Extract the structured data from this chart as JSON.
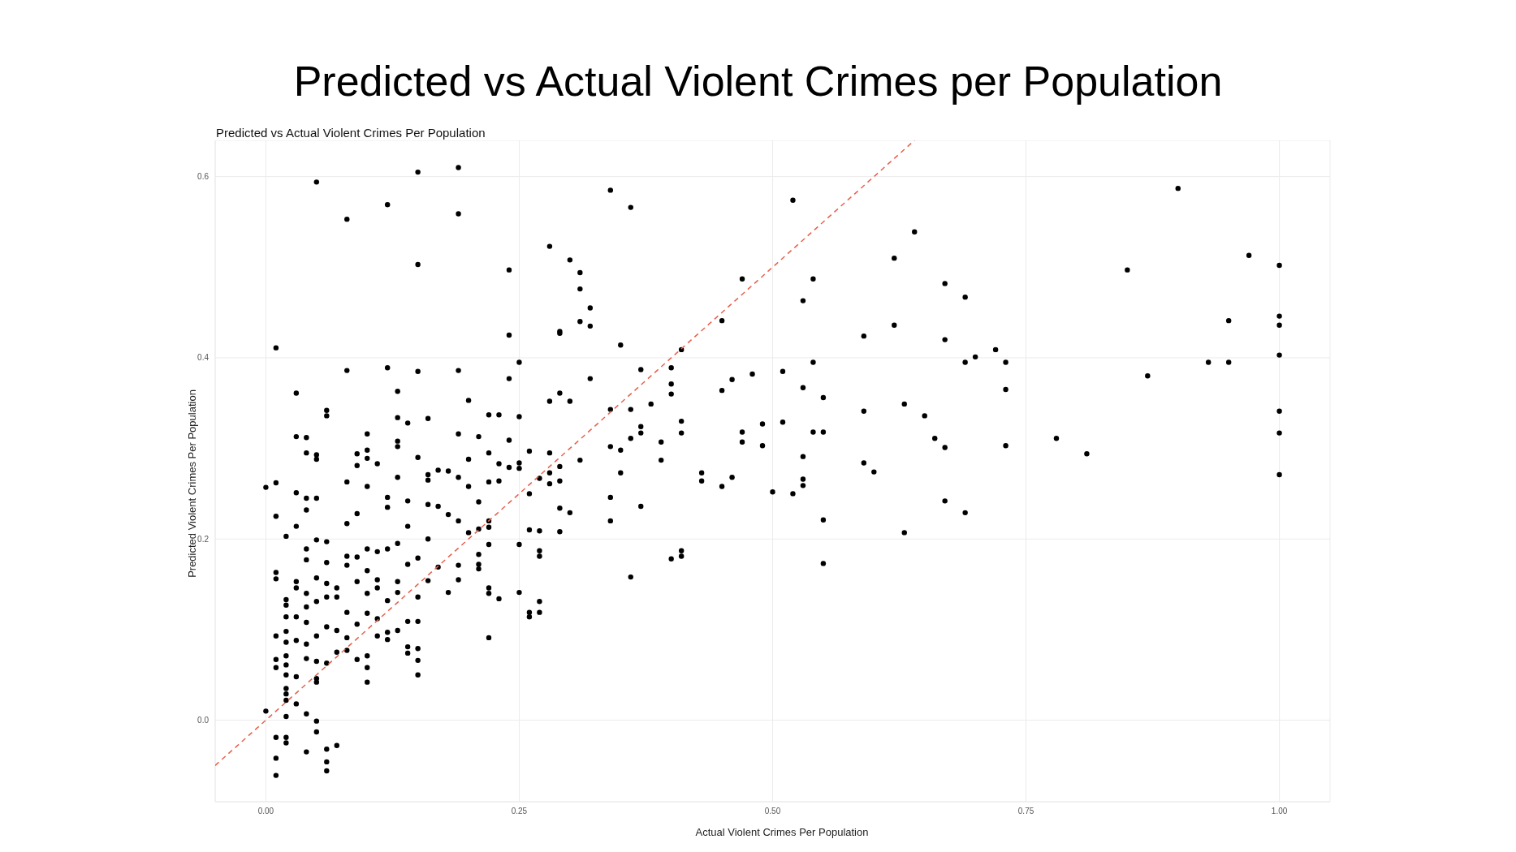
{
  "chart_data": {
    "type": "scatter",
    "title": "Predicted vs Actual Violent Crimes per Population",
    "subtitle": "Predicted vs Actual Violent Crimes Per Population",
    "xlabel": "Actual Violent Crimes Per Population",
    "ylabel": "Predicted Violent Crimes Per Population",
    "xlim": [
      -0.05,
      1.05
    ],
    "ylim": [
      -0.09,
      0.64
    ],
    "xticks": [
      {
        "value": 0,
        "label": "0.00"
      },
      {
        "value": 0.25,
        "label": "0.25"
      },
      {
        "value": 0.5,
        "label": "0.50"
      },
      {
        "value": 0.75,
        "label": "0.75"
      },
      {
        "value": 1,
        "label": "1.00"
      }
    ],
    "yticks": [
      {
        "value": 0,
        "label": "0.0"
      },
      {
        "value": 0.2,
        "label": "0.2"
      },
      {
        "value": 0.4,
        "label": "0.4"
      },
      {
        "value": 0.6,
        "label": "0.6"
      }
    ],
    "grid": true,
    "series": [
      {
        "color": "#000000",
        "marker": "circle",
        "x": [
          0.05,
          0.15,
          0.19,
          0.12,
          0.08,
          0.19,
          0.15,
          0.34,
          0.36,
          0.52,
          0.9,
          0.28,
          0.3,
          0.24,
          0.31,
          0.31,
          0.32,
          0.64,
          0.62,
          0.97,
          1.0,
          0.85,
          0.47,
          0.54,
          0.53,
          0.67,
          0.69,
          0.45,
          0.31,
          0.32,
          0.29,
          0.29,
          0.24,
          0.62,
          0.59,
          0.95,
          1.0,
          1.0,
          0.67,
          0.35,
          0.41,
          0.01,
          0.72,
          0.7,
          1.0,
          0.69,
          0.73,
          0.93,
          0.95,
          0.25,
          0.12,
          0.08,
          0.15,
          0.19,
          0.37,
          0.4,
          0.54,
          0.51,
          0.48,
          0.87,
          0.46,
          0.32,
          0.24,
          0.4,
          0.4,
          0.53,
          0.45,
          0.73,
          0.29,
          0.03,
          0.13,
          0.55,
          0.2,
          0.3,
          0.28,
          0.63,
          0.38,
          0.34,
          0.36,
          0.06,
          0.59,
          1.0,
          0.06,
          0.13,
          0.16,
          0.22,
          0.23,
          0.25,
          0.65,
          0.14,
          0.41,
          0.49,
          0.51,
          0.37,
          0.55,
          0.47,
          0.54,
          1.0,
          0.37,
          0.41,
          0.1,
          0.03,
          0.04,
          0.21,
          0.19,
          0.36,
          0.78,
          0.66,
          0.24,
          0.13,
          0.47,
          0.39,
          0.13,
          0.49,
          0.67,
          0.73,
          0.34,
          0.35,
          0.26,
          0.53,
          0.1,
          0.81,
          0.15,
          0.09,
          0.04,
          0.05,
          0.05,
          0.28,
          0.22,
          0.1,
          0.11,
          0.09,
          0.18,
          0.17,
          0.2,
          0.23,
          0.24,
          0.25,
          0.25,
          0.31,
          0.39,
          0.29,
          0.16,
          0.19,
          0.28,
          0.35,
          0.43,
          0.6,
          1.0,
          0.59,
          0.16,
          0.13,
          0.08,
          0.01,
          0.27,
          0.23,
          0.22,
          0.29,
          0.28,
          0.43,
          0.46,
          0.53,
          0.53,
          0.45,
          0.0,
          0.1,
          0.2,
          0.03,
          0.5,
          0.52,
          0.26,
          0.34,
          0.67,
          0.14,
          0.12,
          0.04,
          0.05,
          0.16,
          0.21,
          0.37,
          0.29,
          0.17,
          0.12,
          0.69,
          0.3,
          0.18,
          0.34,
          0.55,
          0.63,
          0.19,
          0.22,
          0.09,
          0.04,
          0.01,
          0.03,
          0.08,
          0.14,
          0.21,
          0.22,
          0.26,
          0.27,
          0.29,
          0.2,
          0.02,
          0.13,
          0.16,
          0.05,
          0.06,
          0.25,
          0.22,
          0.04,
          0.1,
          0.12,
          0.27,
          0.27,
          0.21,
          0.08,
          0.09,
          0.11,
          0.41,
          0.41,
          0.4,
          0.55,
          0.04,
          0.15,
          0.21,
          0.21,
          0.06,
          0.08,
          0.14,
          0.17,
          0.19,
          0.01,
          0.01,
          0.1,
          0.05,
          0.36,
          0.13,
          0.16,
          0.19,
          0.09,
          0.03,
          0.03,
          0.06,
          0.07,
          0.11,
          0.11,
          0.18,
          0.22,
          0.22,
          0.25,
          0.04,
          0.1,
          0.13,
          0.02,
          0.02,
          0.06,
          0.07,
          0.23,
          0.05,
          0.27,
          0.12,
          0.04,
          0.15,
          0.26,
          0.26,
          0.27,
          0.02,
          0.08,
          0.1,
          0.03,
          0.04,
          0.14,
          0.15,
          0.11,
          0.09,
          0.06,
          0.07,
          0.02,
          0.13,
          0.12,
          0.11,
          0.01,
          0.05,
          0.08,
          0.22,
          0.12,
          0.03,
          0.02,
          0.04,
          0.14,
          0.08,
          0.07,
          0.15,
          0.14,
          0.01,
          0.02,
          0.04,
          0.09,
          0.1,
          0.05,
          0.15,
          0.06,
          0.01,
          0.02,
          0.1,
          0.02,
          0.03,
          0.05,
          0.05,
          0.15,
          0.1,
          0.02,
          0.02,
          0.02,
          0.03,
          0.0,
          0.04,
          0.02,
          0.05,
          0.05,
          0.01,
          0.02,
          0.02,
          0.07,
          0.04,
          0.06,
          0.01,
          0.06,
          0.06,
          0.01
        ],
        "values": [
          0.594,
          0.605,
          0.61,
          0.569,
          0.553,
          0.559,
          0.503,
          0.585,
          0.566,
          0.574,
          0.587,
          0.523,
          0.508,
          0.497,
          0.494,
          0.476,
          0.455,
          0.539,
          0.51,
          0.513,
          0.502,
          0.497,
          0.487,
          0.487,
          0.463,
          0.482,
          0.467,
          0.441,
          0.44,
          0.435,
          0.429,
          0.427,
          0.425,
          0.436,
          0.424,
          0.441,
          0.446,
          0.436,
          0.42,
          0.414,
          0.409,
          0.411,
          0.409,
          0.401,
          0.403,
          0.395,
          0.395,
          0.395,
          0.395,
          0.395,
          0.389,
          0.386,
          0.385,
          0.386,
          0.387,
          0.389,
          0.395,
          0.385,
          0.382,
          0.38,
          0.376,
          0.377,
          0.377,
          0.371,
          0.36,
          0.367,
          0.364,
          0.365,
          0.361,
          0.361,
          0.363,
          0.356,
          0.353,
          0.352,
          0.352,
          0.349,
          0.349,
          0.343,
          0.343,
          0.342,
          0.341,
          0.341,
          0.336,
          0.334,
          0.333,
          0.337,
          0.337,
          0.335,
          0.336,
          0.328,
          0.33,
          0.327,
          0.329,
          0.324,
          0.318,
          0.318,
          0.318,
          0.317,
          0.317,
          0.317,
          0.316,
          0.313,
          0.312,
          0.313,
          0.316,
          0.311,
          0.311,
          0.311,
          0.309,
          0.308,
          0.307,
          0.307,
          0.302,
          0.303,
          0.301,
          0.303,
          0.302,
          0.298,
          0.297,
          0.291,
          0.298,
          0.294,
          0.29,
          0.294,
          0.295,
          0.293,
          0.288,
          0.295,
          0.295,
          0.289,
          0.283,
          0.281,
          0.275,
          0.276,
          0.288,
          0.283,
          0.279,
          0.284,
          0.278,
          0.287,
          0.287,
          0.28,
          0.271,
          0.268,
          0.273,
          0.273,
          0.273,
          0.274,
          0.271,
          0.284,
          0.265,
          0.268,
          0.263,
          0.262,
          0.267,
          0.264,
          0.263,
          0.264,
          0.261,
          0.264,
          0.268,
          0.266,
          0.259,
          0.258,
          0.257,
          0.258,
          0.258,
          0.251,
          0.252,
          0.25,
          0.25,
          0.246,
          0.242,
          0.242,
          0.246,
          0.245,
          0.245,
          0.238,
          0.241,
          0.236,
          0.234,
          0.236,
          0.235,
          0.229,
          0.229,
          0.227,
          0.22,
          0.221,
          0.207,
          0.22,
          0.22,
          0.228,
          0.232,
          0.225,
          0.214,
          0.217,
          0.214,
          0.211,
          0.213,
          0.21,
          0.209,
          0.208,
          0.207,
          0.203,
          0.195,
          0.2,
          0.199,
          0.197,
          0.194,
          0.194,
          0.189,
          0.189,
          0.189,
          0.187,
          0.181,
          0.183,
          0.181,
          0.18,
          0.186,
          0.187,
          0.181,
          0.178,
          0.173,
          0.177,
          0.179,
          0.172,
          0.167,
          0.174,
          0.171,
          0.172,
          0.169,
          0.171,
          0.163,
          0.156,
          0.165,
          0.157,
          0.158,
          0.153,
          0.154,
          0.155,
          0.153,
          0.153,
          0.146,
          0.151,
          0.146,
          0.155,
          0.146,
          0.141,
          0.146,
          0.14,
          0.141,
          0.14,
          0.14,
          0.141,
          0.133,
          0.127,
          0.136,
          0.136,
          0.134,
          0.131,
          0.131,
          0.132,
          0.125,
          0.136,
          0.119,
          0.114,
          0.119,
          0.114,
          0.119,
          0.118,
          0.114,
          0.108,
          0.109,
          0.109,
          0.112,
          0.106,
          0.103,
          0.099,
          0.098,
          0.099,
          0.097,
          0.093,
          0.093,
          0.093,
          0.091,
          0.091,
          0.089,
          0.088,
          0.086,
          0.084,
          0.081,
          0.077,
          0.075,
          0.079,
          0.074,
          0.067,
          0.071,
          0.068,
          0.067,
          0.071,
          0.065,
          0.066,
          0.063,
          0.058,
          0.061,
          0.058,
          0.05,
          0.048,
          0.046,
          0.042,
          0.05,
          0.042,
          0.035,
          0.029,
          0.022,
          0.018,
          0.01,
          0.007,
          0.004,
          -0.001,
          -0.013,
          -0.019,
          -0.019,
          -0.025,
          -0.028,
          -0.035,
          -0.032,
          -0.042,
          -0.046,
          -0.056,
          -0.061
        ]
      },
      {
        "type": "line",
        "color": "#e8604c",
        "line_style": "dashed",
        "marker": "none",
        "x": [
          -0.05,
          0.64
        ],
        "values": [
          -0.05,
          0.64
        ]
      }
    ]
  }
}
